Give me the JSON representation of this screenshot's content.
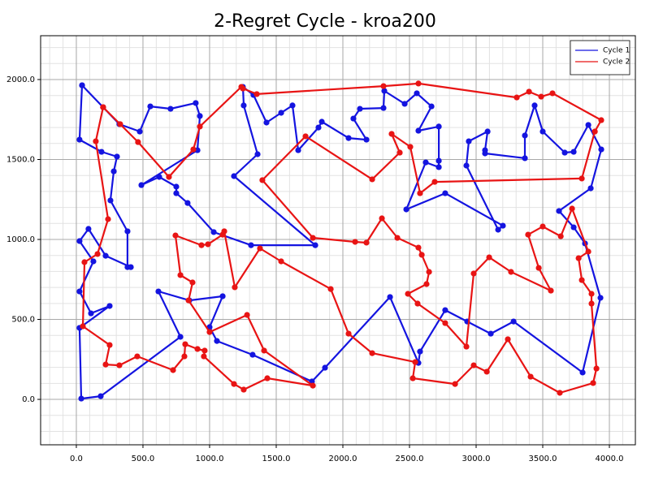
{
  "chart_data": {
    "type": "line",
    "title": "2-Regret Cycle - kroa200",
    "xlim": [
      -268,
      4195
    ],
    "ylim": [
      -284,
      2274
    ],
    "xticks": [
      {
        "value": 0,
        "label": "0.0"
      },
      {
        "value": 500,
        "label": "500.0"
      },
      {
        "value": 1000,
        "label": "1000.0"
      },
      {
        "value": 1500,
        "label": "1500.0"
      },
      {
        "value": 2000,
        "label": "2000.0"
      },
      {
        "value": 2500,
        "label": "2500.0"
      },
      {
        "value": 3000,
        "label": "3000.0"
      },
      {
        "value": 3500,
        "label": "3500.0"
      },
      {
        "value": 4000,
        "label": "4000.0"
      }
    ],
    "yticks": [
      {
        "value": 0,
        "label": "0.0"
      },
      {
        "value": 500,
        "label": "500.0"
      },
      {
        "value": 1000,
        "label": "1000.0"
      },
      {
        "value": 1500,
        "label": "1500.0"
      },
      {
        "value": 2000,
        "label": "2000.0"
      }
    ],
    "grid": true,
    "minor_grid": true,
    "legend": "upper right",
    "series": [
      {
        "name": "Cycle 1",
        "color": "#1414e0",
        "x": [
          43,
          24,
          189,
          305,
          281,
          256,
          384,
          384,
          409,
          220,
          91,
          24,
          128,
          24,
          110,
          250,
          24,
          37,
          183,
          781,
          616,
          848,
          1098,
          1000,
          1055,
          1323,
          1768,
          1866,
          2354,
          2567,
          2579,
          2768,
          2933,
          3110,
          3281,
          3799,
          3933,
          3817,
          3732,
          3622,
          3860,
          3939,
          3842,
          3732,
          3665,
          3500,
          3439,
          3366,
          3366,
          3067,
          3067,
          3086,
          2945,
          2927,
          3165,
          3201,
          2768,
          2476,
          2622,
          2720,
          2720,
          2720,
          2567,
          2665,
          2555,
          2464,
          2311,
          2305,
          2128,
          2079,
          2177,
          2043,
          1842,
          1817,
          1665,
          1622,
          1537,
          1427,
          1329,
          1250,
          1256,
          1360,
          1183,
          1793,
          1311,
          1031,
          835,
          750,
          750,
          622,
          488,
          909,
          927,
          896,
          707,
          555,
          476,
          323,
          201,
          43
        ],
        "values": [
          1964,
          1624,
          1548,
          1518,
          1426,
          1244,
          1051,
          827,
          827,
          898,
          1066,
          990,
          863,
          675,
          538,
          584,
          447,
          5,
          20,
          391,
          675,
          619,
          645,
          452,
          365,
          279,
          112,
          198,
          640,
          228,
          299,
          558,
          487,
          411,
          487,
          168,
          635,
          975,
          1076,
          1178,
          1320,
          1563,
          1716,
          1548,
          1543,
          1675,
          1838,
          1650,
          1508,
          1538,
          1558,
          1675,
          1614,
          1462,
          1061,
          1086,
          1289,
          1188,
          1482,
          1452,
          1492,
          1706,
          1680,
          1832,
          1914,
          1848,
          1929,
          1822,
          1817,
          1756,
          1624,
          1634,
          1736,
          1700,
          1558,
          1838,
          1792,
          1731,
          1904,
          1954,
          1838,
          1533,
          1396,
          964,
          964,
          1046,
          1228,
          1289,
          1330,
          1391,
          1340,
          1558,
          1772,
          1853,
          1817,
          1832,
          1675,
          1721,
          1827,
          1964
        ]
      },
      {
        "name": "Cycle 2",
        "color": "#e81414",
        "x": [
          201,
          329,
          463,
          695,
          878,
          927,
          1238,
          1250,
          1354,
          2305,
          2567,
          3305,
          3397,
          3488,
          3573,
          3939,
          3891,
          3793,
          2689,
          2579,
          2506,
          2366,
          2427,
          2220,
          1720,
          1396,
          1775,
          2092,
          2177,
          2293,
          2409,
          2567,
          2592,
          2647,
          2628,
          2488,
          2561,
          2768,
          2927,
          2982,
          3098,
          3262,
          3561,
          3470,
          3390,
          3500,
          3635,
          3720,
          3842,
          3769,
          3793,
          3866,
          3866,
          3903,
          3878,
          3628,
          3409,
          3238,
          3080,
          2982,
          2842,
          2525,
          2543,
          2220,
          2043,
          1909,
          1537,
          1378,
          1189,
          1110,
          1098,
          988,
          939,
          744,
          781,
          872,
          842,
          1000,
          1281,
          1409,
          1775,
          1433,
          1256,
          1183,
          957,
          963,
          909,
          817,
          811,
          726,
          457,
          323,
          220,
          250,
          49,
          61,
          159,
          238,
          146,
          201
        ],
        "values": [
          1827,
          1721,
          1609,
          1391,
          1563,
          1706,
          1954,
          1944,
          1909,
          1959,
          1975,
          1888,
          1924,
          1893,
          1914,
          1746,
          1675,
          1381,
          1360,
          1289,
          1579,
          1660,
          1543,
          1376,
          1645,
          1371,
          1010,
          985,
          980,
          1132,
          1010,
          949,
          904,
          797,
          721,
          660,
          599,
          477,
          330,
          787,
          888,
          797,
          680,
          822,
          1030,
          1081,
          1020,
          1193,
          924,
          883,
          746,
          660,
          599,
          193,
          102,
          41,
          142,
          376,
          173,
          213,
          96,
          132,
          233,
          289,
          411,
          690,
          863,
          944,
          701,
          1051,
          1030,
          970,
          964,
          1025,
          777,
          731,
          619,
          421,
          528,
          305,
          86,
          132,
          61,
          96,
          269,
          305,
          315,
          345,
          269,
          183,
          269,
          213,
          218,
          340,
          457,
          858,
          909,
          1127,
          1614,
          1827
        ]
      }
    ]
  }
}
